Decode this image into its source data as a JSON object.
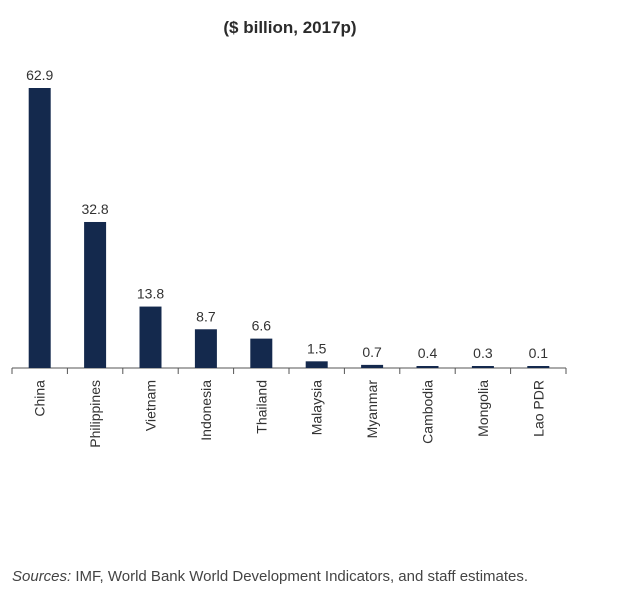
{
  "chart_data": {
    "type": "bar",
    "title": "($ billion, 2017p)",
    "categories": [
      "China",
      "Philippines",
      "Vietnam",
      "Indonesia",
      "Thailand",
      "Malaysia",
      "Myanmar",
      "Cambodia",
      "Mongolia",
      "Lao PDR"
    ],
    "values": [
      62.9,
      32.8,
      13.8,
      8.7,
      6.6,
      1.5,
      0.7,
      0.4,
      0.3,
      0.1
    ],
    "data_labels": [
      "62.9",
      "32.8",
      "13.8",
      "8.7",
      "6.6",
      "1.5",
      "0.7",
      "0.4",
      "0.3",
      "0.1"
    ],
    "ylim": [
      0,
      62.9
    ],
    "grid": false,
    "legend": "none",
    "bar_color": "#14294d"
  },
  "source": {
    "prefix": "Sources:",
    "text": " IMF, World Bank World Development Indicators, and staff estimates."
  }
}
